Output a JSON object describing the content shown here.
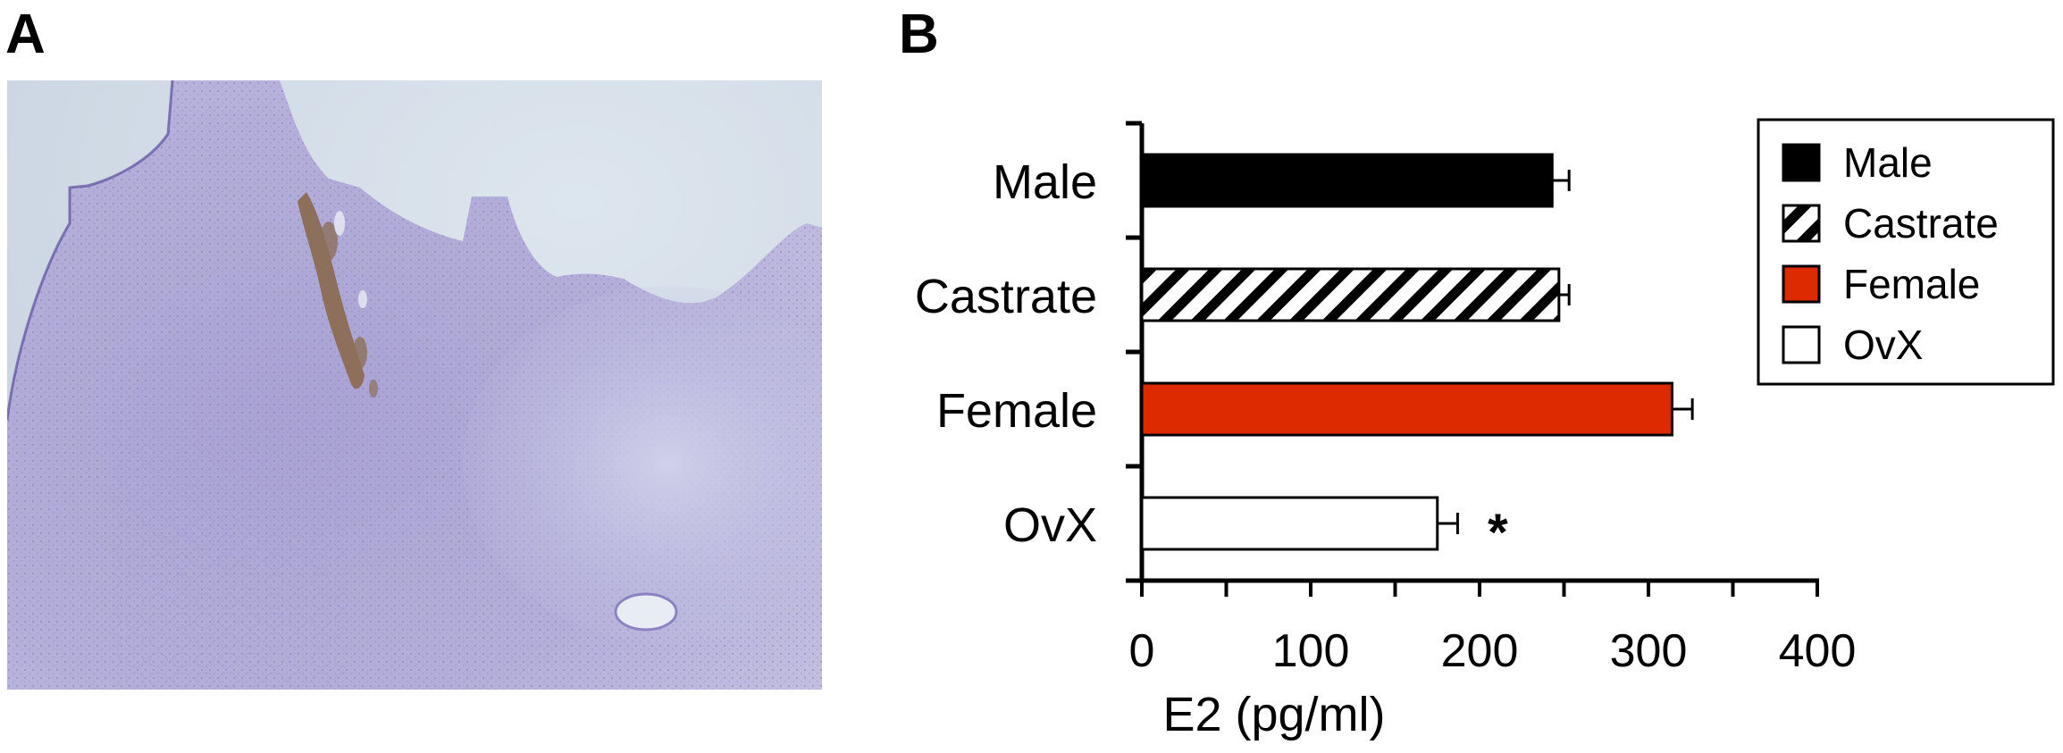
{
  "panels": {
    "a": {
      "label": "A"
    },
    "b": {
      "label": "B"
    }
  },
  "chart_data": {
    "type": "bar",
    "orientation": "horizontal",
    "categories": [
      "Male",
      "Castrate",
      "Female",
      "OvX"
    ],
    "values": [
      243,
      247,
      314,
      175
    ],
    "errors": [
      10,
      6,
      12,
      12
    ],
    "fills": [
      "solid-black",
      "diagonal-hatch",
      "solid-red",
      "solid-white"
    ],
    "colors": {
      "male": "#000000",
      "female": "#dd2a00",
      "ovx": "#ffffff",
      "castrate_hatch": "#000000"
    },
    "annotations": [
      {
        "category": "OvX",
        "text": "*"
      }
    ],
    "title": "",
    "xlabel": "E2 (pg/ml)",
    "ylabel": "",
    "xlim": [
      0,
      400
    ],
    "xticks": [
      0,
      100,
      200,
      300,
      400
    ],
    "grid": false,
    "legend": {
      "placement": "top-right",
      "entries": [
        "Male",
        "Castrate",
        "Female",
        "OvX"
      ]
    }
  }
}
